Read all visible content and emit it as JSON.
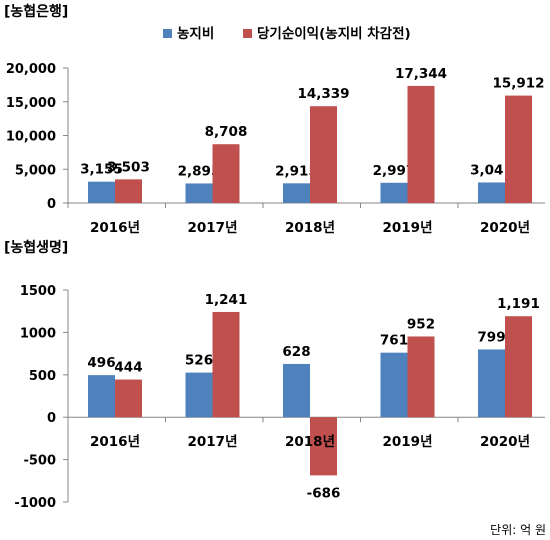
{
  "chart_data": [
    {
      "type": "bar",
      "title": "[농협은행]",
      "categories": [
        "2016년",
        "2017년",
        "2018년",
        "2019년",
        "2020년"
      ],
      "series": [
        {
          "name": "농지비",
          "color": "#4F81BD",
          "values": [
            3155,
            2895,
            2915,
            2997,
            3041
          ]
        },
        {
          "name": "당기순이익(농지비 차감전)",
          "color": "#C0504D",
          "values": [
            3503,
            8708,
            14339,
            17344,
            15912
          ]
        }
      ],
      "data_labels": [
        [
          "3,155",
          "2,895",
          "2,915",
          "2,997",
          "3,041"
        ],
        [
          "3,503",
          "8,708",
          "14,339",
          "17,344",
          "15,912"
        ]
      ],
      "ylim": [
        0,
        20000
      ],
      "yticks": [
        0,
        5000,
        10000,
        15000,
        20000
      ],
      "ytick_labels": [
        "0",
        "5,000",
        "10,000",
        "15,000",
        "20,000"
      ],
      "legend": "top",
      "grid": false
    },
    {
      "type": "bar",
      "title": "[농협생명]",
      "categories": [
        "2016년",
        "2017년",
        "2018년",
        "2019년",
        "2020년"
      ],
      "series": [
        {
          "name": "농지비",
          "color": "#4F81BD",
          "values": [
            496,
            526,
            628,
            761,
            799
          ]
        },
        {
          "name": "당기순이익(농지비 차감전)",
          "color": "#C0504D",
          "values": [
            444,
            1241,
            -686,
            952,
            1191
          ]
        }
      ],
      "data_labels": [
        [
          "496",
          "526",
          "628",
          "761",
          "799"
        ],
        [
          "444",
          "1,241",
          "-686",
          "952",
          "1,191"
        ]
      ],
      "ylim": [
        -1000,
        1500
      ],
      "yticks": [
        -1000,
        -500,
        0,
        500,
        1000,
        1500
      ],
      "ytick_labels": [
        "-1000",
        "-500",
        "0",
        "500",
        "1000",
        "1500"
      ],
      "grid": false
    }
  ],
  "legend_items": [
    {
      "label": "농지비",
      "color": "#4F81BD"
    },
    {
      "label": "당기순이익(농지비 차감전)",
      "color": "#C0504D"
    }
  ],
  "unit_note": "단위: 억 원"
}
